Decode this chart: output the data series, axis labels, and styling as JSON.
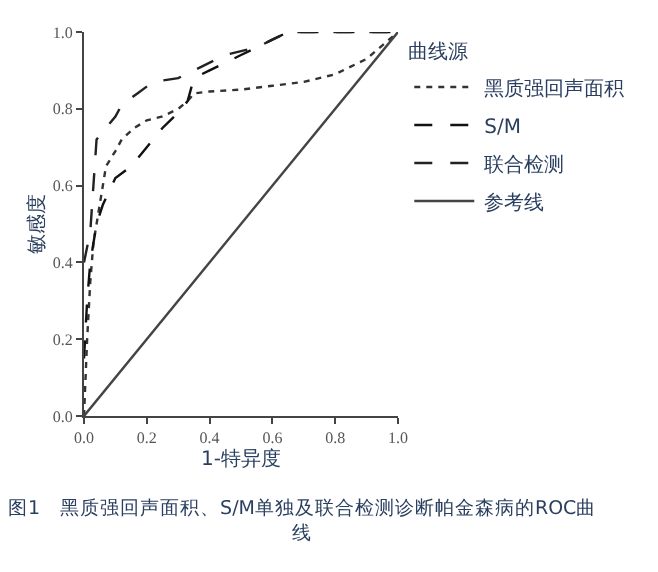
{
  "chart_data": {
    "type": "line",
    "xlabel": "1-特异度",
    "ylabel": "敏感度",
    "legend_title": "曲线源",
    "legend": "top right",
    "marker": "none",
    "xlim": [
      0,
      1
    ],
    "ylim": [
      0,
      1
    ],
    "xticks": [
      {
        "value": 0,
        "label": "0.0"
      },
      0.2,
      0.4,
      0.6,
      0.8,
      {
        "value": 1,
        "label": "1.0"
      }
    ],
    "yticks": [
      {
        "value": 0,
        "label": "0.0"
      },
      0.2,
      0.4,
      0.6,
      0.8,
      {
        "value": 1,
        "label": "1.0"
      }
    ],
    "series": [
      {
        "name": "黑质强回声面积",
        "color": "#333333",
        "line_style": "dotted",
        "x": [
          0,
          0.01,
          0.02,
          0.03,
          0.05,
          0.07,
          0.1,
          0.12,
          0.16,
          0.2,
          0.25,
          0.3,
          0.33,
          0.35,
          0.4,
          0.5,
          0.6,
          0.7,
          0.8,
          0.9,
          1
        ],
        "values": [
          0,
          0.2,
          0.35,
          0.45,
          0.55,
          0.65,
          0.69,
          0.72,
          0.75,
          0.77,
          0.78,
          0.8,
          0.82,
          0.84,
          0.845,
          0.85,
          0.86,
          0.87,
          0.89,
          0.93,
          1
        ]
      },
      {
        "name": "S/M",
        "color": "#111111",
        "line_style": "dashed",
        "x": [
          0,
          0.01,
          0.02,
          0.04,
          0.06,
          0.1,
          0.15,
          0.2,
          0.25,
          0.3,
          0.33,
          0.35,
          0.4,
          0.5,
          0.55,
          0.6,
          0.65,
          1
        ],
        "values": [
          0.15,
          0.3,
          0.4,
          0.5,
          0.55,
          0.62,
          0.65,
          0.7,
          0.75,
          0.79,
          0.82,
          0.88,
          0.9,
          0.94,
          0.96,
          0.98,
          1,
          1
        ]
      },
      {
        "name": "联合检测",
        "color": "#222222",
        "line_style": "dashed",
        "x": [
          0,
          0.02,
          0.04,
          0.07,
          0.1,
          0.12,
          0.17,
          0.22,
          0.3,
          0.35,
          0.45,
          0.55,
          0.6,
          0.65,
          1
        ],
        "values": [
          0.4,
          0.48,
          0.72,
          0.75,
          0.78,
          0.81,
          0.84,
          0.87,
          0.88,
          0.9,
          0.94,
          0.96,
          0.98,
          1,
          1
        ]
      },
      {
        "name": "参考线",
        "color": "#444444",
        "line_style": "solid",
        "x": [
          0,
          1
        ],
        "values": [
          0,
          1
        ]
      }
    ],
    "annotations": [
      "图1　黑质强回声面积、S/M单独及联合检测诊断帕金森病的ROC曲线"
    ]
  }
}
